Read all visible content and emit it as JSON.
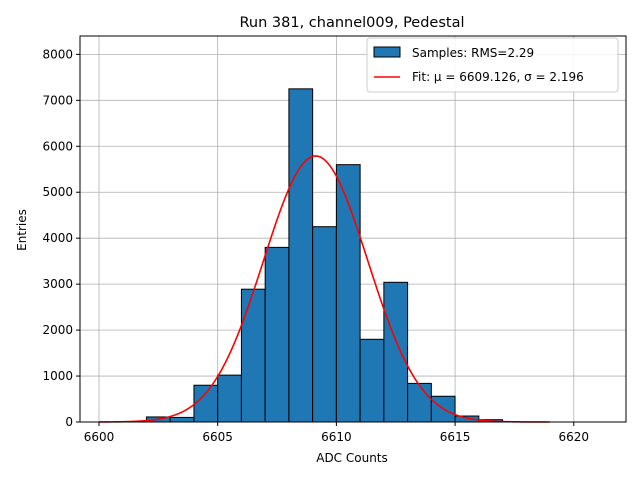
{
  "chart_data": {
    "type": "bar",
    "title": "Run 381, channel009, Pedestal",
    "xlabel": "ADC Counts",
    "ylabel": "Entries",
    "xlim": [
      6599.2,
      6622.2
    ],
    "ylim": [
      0,
      8400
    ],
    "xticks": [
      6600,
      6605,
      6610,
      6615,
      6620
    ],
    "yticks": [
      0,
      1000,
      2000,
      3000,
      4000,
      5000,
      6000,
      7000,
      8000
    ],
    "grid": true,
    "legend_position": "top-right",
    "bin_width": 1,
    "bins": {
      "left_edges": [
        6600,
        6601,
        6602,
        6603,
        6604,
        6605,
        6606,
        6607,
        6608,
        6609,
        6610,
        6611,
        6612,
        6613,
        6614,
        6615,
        6616,
        6617,
        6618,
        6619,
        6620
      ],
      "counts": [
        0,
        0,
        110,
        100,
        800,
        1020,
        2890,
        3800,
        7250,
        4250,
        5600,
        1800,
        3040,
        840,
        560,
        130,
        50,
        0,
        0,
        0,
        0
      ]
    },
    "series": [
      {
        "name": "Samples: RMS=2.29",
        "kind": "histogram",
        "color": "#1f77b4",
        "edgecolor": "#000000"
      },
      {
        "name": "Fit: μ = 6609.126, σ = 2.196",
        "kind": "gaussian",
        "color": "#ff0000",
        "mu": 6609.126,
        "sigma": 2.196,
        "amplitude": 5790,
        "x_range": [
          6600,
          6619
        ]
      }
    ]
  }
}
